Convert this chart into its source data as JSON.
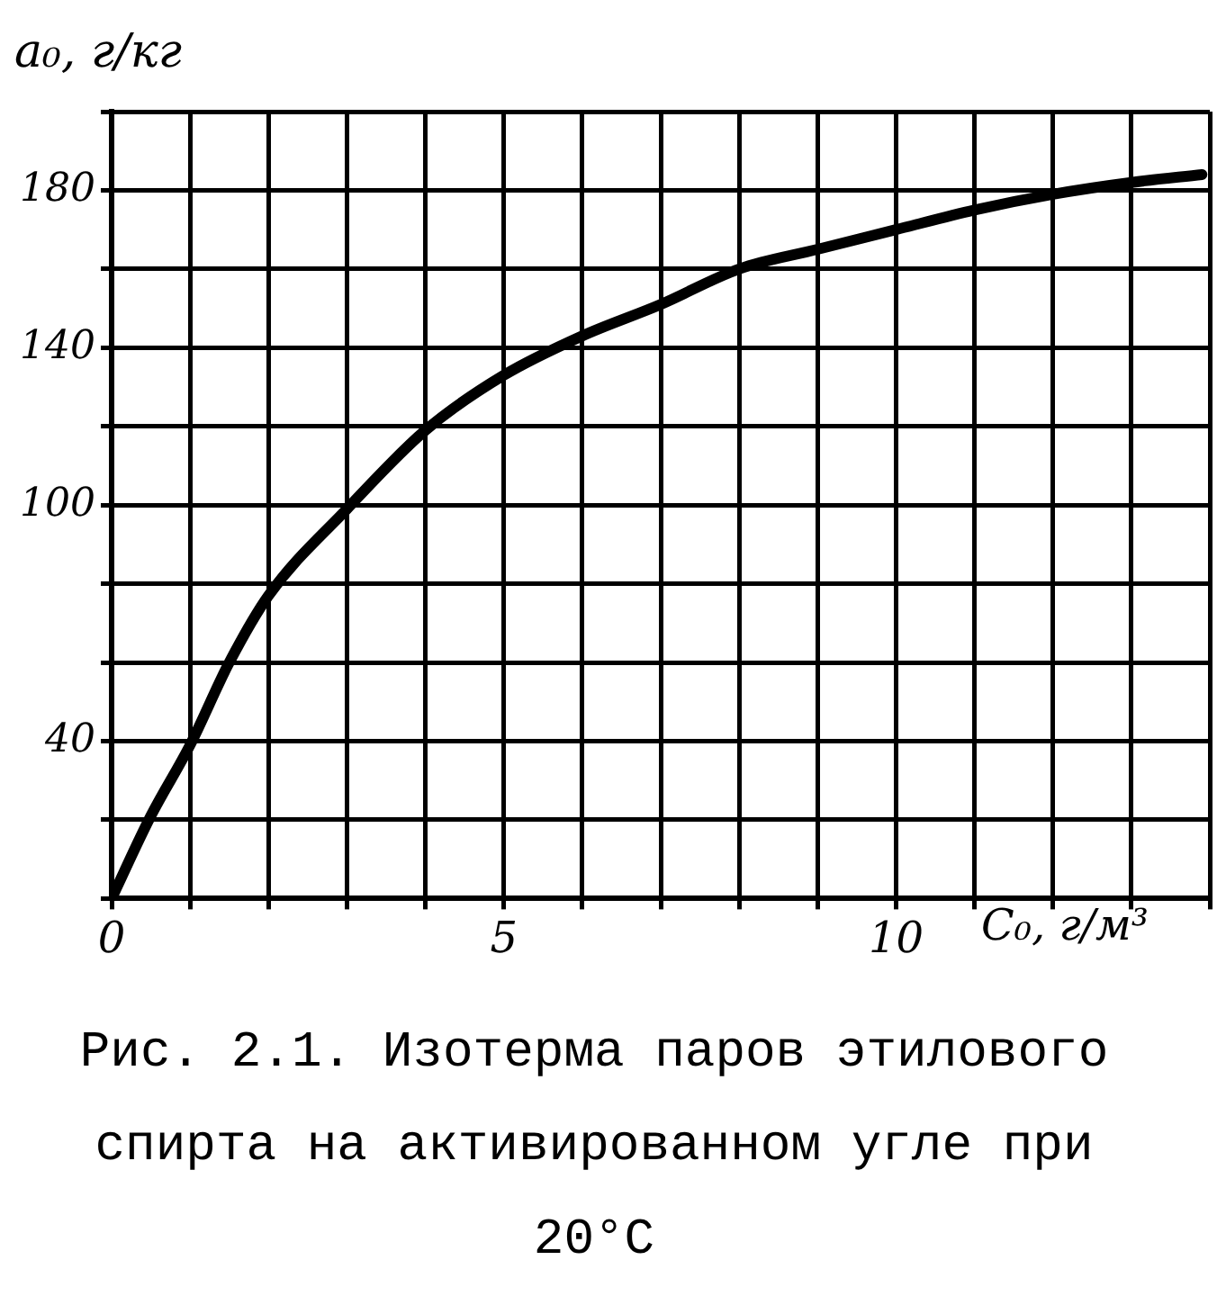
{
  "chart_data": {
    "type": "line",
    "title": "Рис. 2.1. Изотерма паров этилового спирта на активированном угле при 20°C",
    "xlabel": "C₀, г/м³",
    "ylabel": "a₀, г/кг",
    "x": [
      0,
      0.5,
      1,
      1.5,
      2,
      3,
      4,
      5,
      6,
      7,
      8,
      9,
      10,
      11,
      12,
      13,
      13.9
    ],
    "series": [
      {
        "color": "#000000",
        "values": [
          0,
          21,
          39,
          60,
          77,
          99,
          119,
          133,
          143,
          151,
          160,
          165,
          170,
          175,
          179,
          182,
          184
        ]
      }
    ],
    "xlim": [
      0,
      14
    ],
    "ylim": [
      0,
      200
    ],
    "xticks": [
      0,
      {
        "value": 1,
        "label": null
      },
      {
        "value": 2,
        "label": null
      },
      {
        "value": 3,
        "label": null
      },
      {
        "value": 4,
        "label": null
      },
      5,
      {
        "value": 6,
        "label": null
      },
      {
        "value": 7,
        "label": null
      },
      {
        "value": 8,
        "label": null
      },
      {
        "value": 9,
        "label": null
      },
      10,
      {
        "value": 11,
        "label": null
      },
      {
        "value": 12,
        "label": null
      },
      {
        "value": 13,
        "label": null
      },
      {
        "value": 14,
        "label": null
      }
    ],
    "yticks": [
      {
        "value": 0,
        "label": null
      },
      {
        "value": 20,
        "label": null
      },
      40,
      {
        "value": 60,
        "label": null
      },
      {
        "value": 80,
        "label": null
      },
      100,
      {
        "value": 120,
        "label": null
      },
      140,
      {
        "value": 160,
        "label": null
      },
      180,
      {
        "value": 200,
        "label": null
      }
    ],
    "grid": true,
    "legend": false,
    "marker": "none",
    "line_style": "solid"
  }
}
